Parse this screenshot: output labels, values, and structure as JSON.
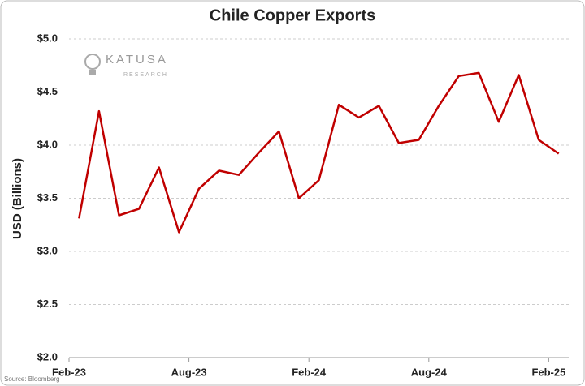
{
  "chart_data": {
    "type": "line",
    "title": "Chile Copper Exports",
    "y_label": "USD (Billions)",
    "source": "Source: Bloomberg",
    "logo": {
      "name": "KATUSA",
      "subtitle": "RESEARCH"
    },
    "categories": [
      "Feb-23",
      null,
      null,
      null,
      null,
      null,
      "Aug-23",
      null,
      null,
      null,
      null,
      null,
      "Feb-24",
      null,
      null,
      null,
      null,
      null,
      "Aug-24",
      null,
      null,
      null,
      null,
      null,
      "Feb-25"
    ],
    "series": [
      {
        "name": "Chile Copper Exports",
        "color": "#c00000",
        "values": [
          3.31,
          4.32,
          3.34,
          3.4,
          3.79,
          3.18,
          3.59,
          3.76,
          3.72,
          3.93,
          4.13,
          3.5,
          3.67,
          4.38,
          4.26,
          4.37,
          4.02,
          4.05,
          4.37,
          4.65,
          4.68,
          4.22,
          4.66,
          4.05,
          3.92
        ]
      }
    ],
    "ylim": [
      2.0,
      5.0
    ],
    "yticks": [
      {
        "value": 2.0,
        "label": "$2.0"
      },
      {
        "value": 2.5,
        "label": "$2.5"
      },
      {
        "value": 3.0,
        "label": "$3.0"
      },
      {
        "value": 3.5,
        "label": "$3.5"
      },
      {
        "value": 4.0,
        "label": "$4.0"
      },
      {
        "value": 4.5,
        "label": "$4.5"
      },
      {
        "value": 5.0,
        "label": "$5.0"
      }
    ],
    "grid": true
  }
}
